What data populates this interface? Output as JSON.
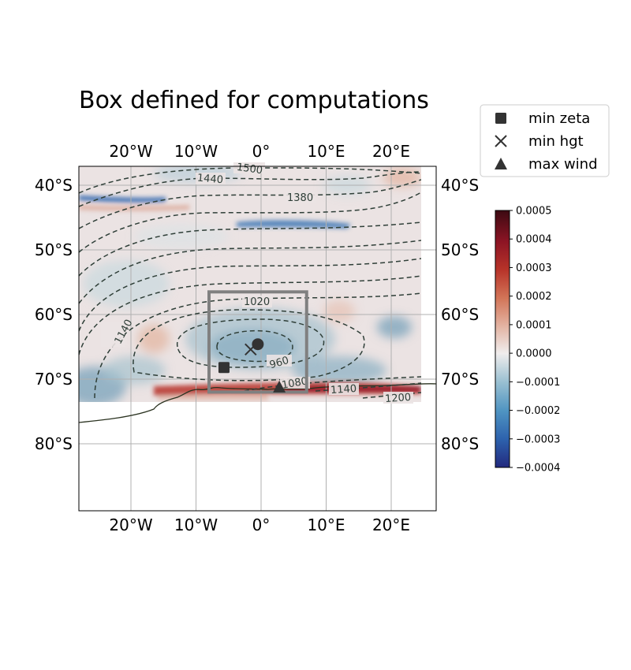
{
  "chart_data": {
    "type": "map",
    "title": "Box defined for computations",
    "projection": "lat-lon map",
    "lon_ticks": [
      "20°W",
      "10°W",
      "0°",
      "10°E",
      "20°E"
    ],
    "lat_ticks": [
      "40°S",
      "50°S",
      "60°S",
      "70°S",
      "80°S"
    ],
    "lon_tick_values": [
      -20,
      -10,
      0,
      10,
      20
    ],
    "lat_tick_values": [
      -40,
      -50,
      -60,
      -70,
      -80
    ],
    "map_extent": {
      "lon": [
        -28,
        27
      ],
      "lat": [
        -37,
        -90
      ]
    },
    "field_extent": {
      "lon": [
        -28,
        25
      ],
      "lat": [
        -37,
        -73.5
      ]
    },
    "grid": true,
    "contours": {
      "style": "dashed",
      "labeled_levels": [
        1500,
        1440,
        1380,
        1140,
        1020,
        960,
        1080,
        1140,
        1200
      ]
    },
    "computation_box": {
      "lon": [
        -8,
        7
      ],
      "lat": [
        -56.5,
        -72
      ]
    },
    "markers": [
      {
        "name": "min zeta",
        "symbol": "square",
        "lon": -5.7,
        "lat": -68.2
      },
      {
        "name": "min hgt",
        "symbol": "x",
        "lon": -1.6,
        "lat": -65.4
      },
      {
        "name": "max wind",
        "symbol": "triangle",
        "lon": 2.8,
        "lat": -71.2
      },
      {
        "name": "",
        "symbol": "circle",
        "lon": -0.5,
        "lat": -64.6
      }
    ],
    "legend": {
      "position": "upper right (outside axes)",
      "entries": [
        "min zeta",
        "min hgt",
        "max wind"
      ]
    },
    "colorbar": {
      "min": -0.0004,
      "max": 0.0005,
      "ticks": [
        "0.0005",
        "0.0004",
        "0.0003",
        "0.0002",
        "0.0001",
        "0.0000",
        "−0.0001",
        "−0.0002",
        "−0.0003",
        "−0.0004"
      ],
      "colormap": "diverging blue-white-red"
    },
    "colors": {
      "contour": "#2f3f38",
      "box": "#808080",
      "marker": "#333333",
      "coast": "#2a3220",
      "grid": "#b0b0b0"
    }
  }
}
